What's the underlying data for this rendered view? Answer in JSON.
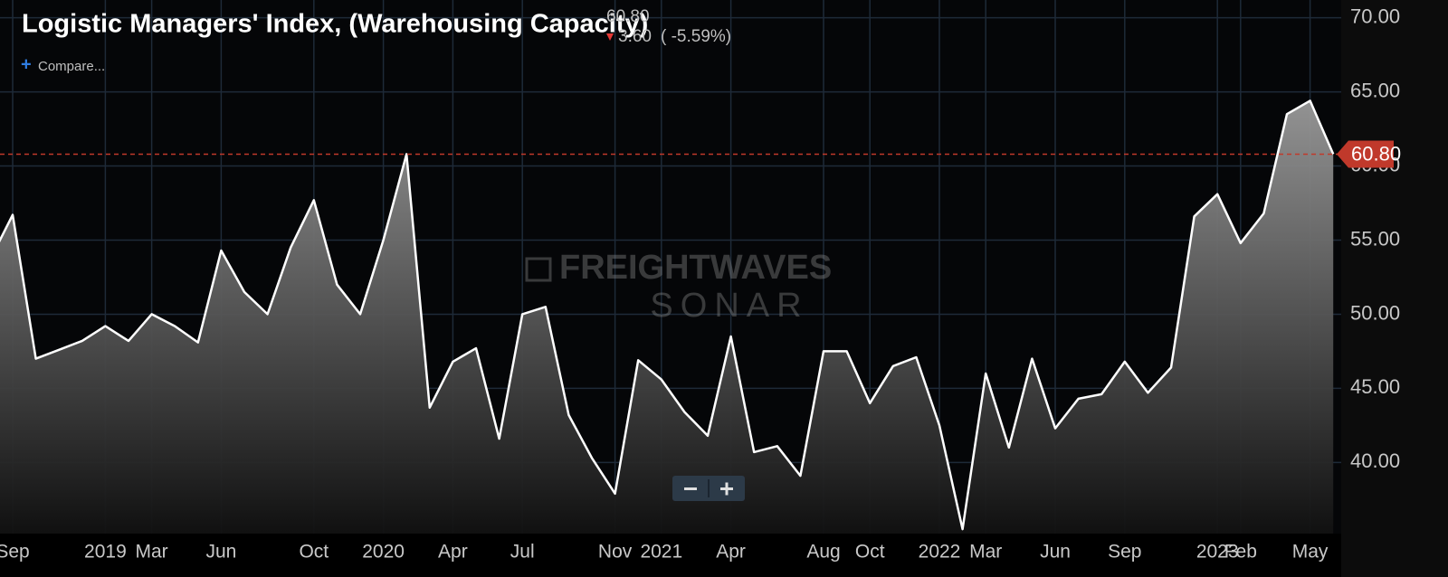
{
  "chart_data": {
    "type": "line",
    "title": "Logistic Managers' Index, (Warehousing Capacity)",
    "current_value": "60.80",
    "change": "3.60",
    "change_pct": "( -5.59%)",
    "compare": "Compare...",
    "watermark": [
      "FREIGHTWAVES",
      "SONAR"
    ],
    "categories": [
      null,
      "Sep",
      null,
      null,
      null,
      "2019",
      null,
      "Mar",
      null,
      null,
      "Jun",
      null,
      null,
      null,
      "Oct",
      null,
      null,
      "2020",
      null,
      null,
      "Apr",
      null,
      null,
      "Jul",
      null,
      null,
      null,
      "Nov",
      null,
      "2021",
      null,
      null,
      "Apr",
      null,
      null,
      null,
      "Aug",
      null,
      "Oct",
      null,
      null,
      "2022",
      null,
      "Mar",
      null,
      null,
      "Jun",
      null,
      null,
      "Sep",
      null,
      null,
      null,
      "2023",
      "Feb",
      null,
      null,
      "May",
      null
    ],
    "series": [
      {
        "name": "Warehousing Capacity",
        "color": "#ffffff",
        "values": [
          53.6,
          56.7,
          47,
          47.6,
          48.2,
          49.2,
          48.2,
          50,
          49.2,
          48.1,
          54.3,
          51.5,
          50,
          54.5,
          57.7,
          52,
          50,
          55,
          60.8,
          43.7,
          46.8,
          47.7,
          41.6,
          50,
          50.5,
          43.2,
          40.3,
          37.9,
          46.9,
          45.6,
          43.4,
          41.8,
          48.5,
          40.7,
          41.1,
          39.1,
          47.5,
          47.5,
          44,
          46.5,
          47.1,
          42.5,
          35.5,
          46,
          41,
          47,
          42.3,
          44.3,
          44.6,
          46.8,
          44.7,
          46.4,
          56.6,
          58.1,
          54.8,
          56.8,
          63.5,
          64.4,
          60.8
        ]
      }
    ],
    "ylim": [
      35.2,
      71.2
    ],
    "yticks": [
      {
        "value": 40,
        "label": "40.00"
      },
      {
        "value": 45,
        "label": "45.00"
      },
      {
        "value": 50,
        "label": "50.00"
      },
      {
        "value": 55,
        "label": "55.00"
      },
      {
        "value": 60,
        "label": "60.00"
      },
      {
        "value": 65,
        "label": "65.00"
      },
      {
        "value": 70,
        "label": "70.00"
      }
    ],
    "reference_line": {
      "value": 60.8,
      "label": "60.80",
      "color": "#c0392b"
    },
    "grid": true
  }
}
